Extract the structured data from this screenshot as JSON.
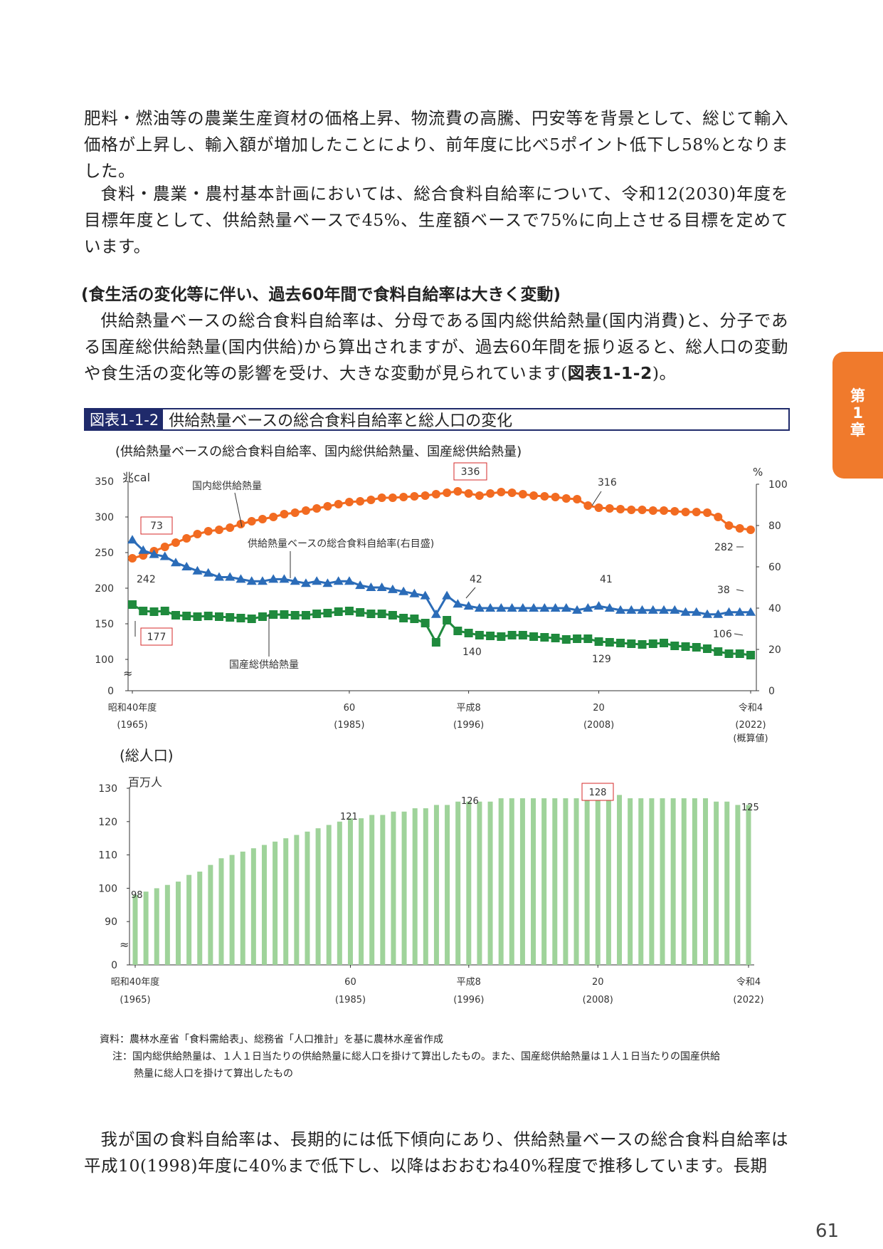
{
  "paragraphs": [
    "肥料・燃油等の農業生産資材の価格上昇、物流費の高騰、円安等を背景として、総じて輸入価格が上昇し、輸入額が増加したことにより、前年度に比べ5ポイント低下し58%となりました。",
    "食料・農業・農村基本計画においては、総合食料自給率について、令和12(2030)年度を目標年度として、供給熱量ベースで45%、生産額ベースで75%に向上させる目標を定めています。"
  ],
  "section_heading": "(食生活の変化等に伴い、過去60年間で食料自給率は大きく変動)",
  "section_paragraph_prefix": "供給熱量ベースの総合食料自給率は、分母である国内総供給熱量(国内消費)と、分子である国産総供給熱量(国内供給)から算出されますが、過去60年間を振り返ると、総人口の変動や食生活の変化等の影響を受け、大きな変動が見られています(",
  "section_paragraph_ref": "図表1-1-2",
  "section_paragraph_suffix": ")。",
  "figure": {
    "label": "図表1-1-2",
    "title": "供給熱量ベースの総合食料自給率と総人口の変化"
  },
  "chart_data": [
    {
      "type": "line",
      "subtitle": "(供給熱量ベースの総合食料自給率、国内総供給熱量、国産総供給熱量)",
      "left_unit": "兆cal",
      "right_unit": "%",
      "left_ticks": [
        "350",
        "300",
        "250",
        "200",
        "150",
        "100",
        "0"
      ],
      "right_ticks": [
        "100",
        "80",
        "60",
        "40",
        "20",
        "0"
      ],
      "x_tick_labels": [
        {
          "year": 1965,
          "label": "昭和40年度",
          "sub": "(1965)"
        },
        {
          "year": 1985,
          "label": "60",
          "sub": "(1985)"
        },
        {
          "year": 1996,
          "label": "平成8",
          "sub": "(1996)"
        },
        {
          "year": 2008,
          "label": "20",
          "sub": "(2008)"
        },
        {
          "year": 2022,
          "label": "令和4",
          "sub": "(2022)",
          "sub2": "(概算値)"
        }
      ],
      "x_start": 1965,
      "x_end": 2022,
      "series": [
        {
          "name": "国内総供給熱量",
          "axis": "left",
          "color": "#f26b21",
          "values": [
            242,
            246,
            252,
            258,
            264,
            270,
            276,
            280,
            282,
            285,
            290,
            294,
            297,
            300,
            304,
            306,
            309,
            312,
            315,
            318,
            321,
            322,
            324,
            327,
            327,
            328,
            329,
            330,
            332,
            334,
            336,
            333,
            330,
            333,
            335,
            334,
            332,
            330,
            329,
            328,
            326,
            325,
            316,
            313,
            312,
            311,
            310,
            310,
            309,
            309,
            308,
            307,
            307,
            306,
            300,
            288,
            284,
            282
          ]
        },
        {
          "name": "供給熱量ベースの総合食料自給率(右目盛)",
          "axis": "right",
          "color": "#2b6cb8",
          "values": [
            73,
            68,
            66,
            65,
            62,
            60,
            58,
            57,
            55,
            55,
            54,
            53,
            53,
            54,
            54,
            53,
            52,
            53,
            52,
            53,
            53,
            51,
            50,
            50,
            49,
            48,
            47,
            46,
            37,
            46,
            42,
            41,
            40,
            40,
            40,
            40,
            40,
            40,
            40,
            40,
            40,
            39,
            40,
            41,
            40,
            39,
            39,
            39,
            39,
            39,
            39,
            38,
            38,
            37,
            37,
            38,
            38,
            38
          ]
        },
        {
          "name": "国産総供給熱量",
          "axis": "left",
          "color": "#1f8a3d",
          "values": [
            177,
            168,
            167,
            168,
            162,
            161,
            160,
            161,
            160,
            159,
            158,
            157,
            160,
            163,
            163,
            162,
            162,
            164,
            165,
            167,
            168,
            166,
            164,
            164,
            162,
            158,
            157,
            151,
            124,
            155,
            140,
            137,
            134,
            133,
            132,
            134,
            134,
            132,
            131,
            130,
            128,
            129,
            129,
            125,
            124,
            123,
            122,
            121,
            122,
            123,
            119,
            118,
            117,
            115,
            111,
            108,
            108,
            106
          ]
        }
      ],
      "annotations": [
        "336",
        "316",
        "282",
        "73",
        "242",
        "42",
        "41",
        "38",
        "177",
        "140",
        "129",
        "106"
      ],
      "labels": {
        "domestic_total": "国内総供給熱量",
        "self_sufficiency": "供給熱量ベースの総合食料自給率(右目盛)",
        "domestic_production": "国産総供給熱量"
      },
      "approx_symbol": "≈"
    },
    {
      "type": "bar",
      "subtitle": "(総人口)",
      "unit": "百万人",
      "y_ticks": [
        "130",
        "120",
        "110",
        "100",
        "90",
        "0"
      ],
      "x_tick_labels": [
        {
          "year": 1965,
          "label": "昭和40年度",
          "sub": "(1965)"
        },
        {
          "year": 1985,
          "label": "60",
          "sub": "(1985)"
        },
        {
          "year": 1996,
          "label": "平成8",
          "sub": "(1996)"
        },
        {
          "year": 2008,
          "label": "20",
          "sub": "(2008)"
        },
        {
          "year": 2022,
          "label": "令和4",
          "sub": "(2022)"
        }
      ],
      "x_start": 1965,
      "color": "#9fd39a",
      "values": [
        98,
        99,
        100,
        101,
        102,
        104,
        105,
        107,
        109,
        110,
        111,
        112,
        113,
        114,
        115,
        116,
        117,
        118,
        119,
        120,
        121,
        121,
        122,
        122,
        123,
        123,
        124,
        124,
        125,
        125,
        126,
        126,
        126,
        126,
        127,
        127,
        127,
        127,
        127,
        127,
        127,
        127,
        128,
        128,
        128,
        128,
        127,
        127,
        127,
        127,
        127,
        127,
        127,
        127,
        126,
        126,
        125,
        125
      ],
      "annotations": [
        "98",
        "121",
        "126",
        "128",
        "125"
      ],
      "approx_symbol": "≈"
    }
  ],
  "notes": {
    "source": "資料：農林水産省「食料需給表」、総務省「人口推計」を基に農林水産省作成",
    "note_line1": "注：国内総供給熱量は、１人１日当たりの供給熱量に総人口を掛けて算出したもの。また、国産総供給熱量は１人１日当たりの国産供給",
    "note_line2": "熱量に総人口を掛けて算出したもの"
  },
  "bottom_paragraph": "我が国の食料自給率は、長期的には低下傾向にあり、供給熱量ベースの総合食料自給率は平成10(1998)年度に40%まで低下し、以降はおおむね40%程度で推移しています。長期",
  "chapter_tab": {
    "line1": "第",
    "line2": "1",
    "line3": "章"
  },
  "page_number": "61"
}
